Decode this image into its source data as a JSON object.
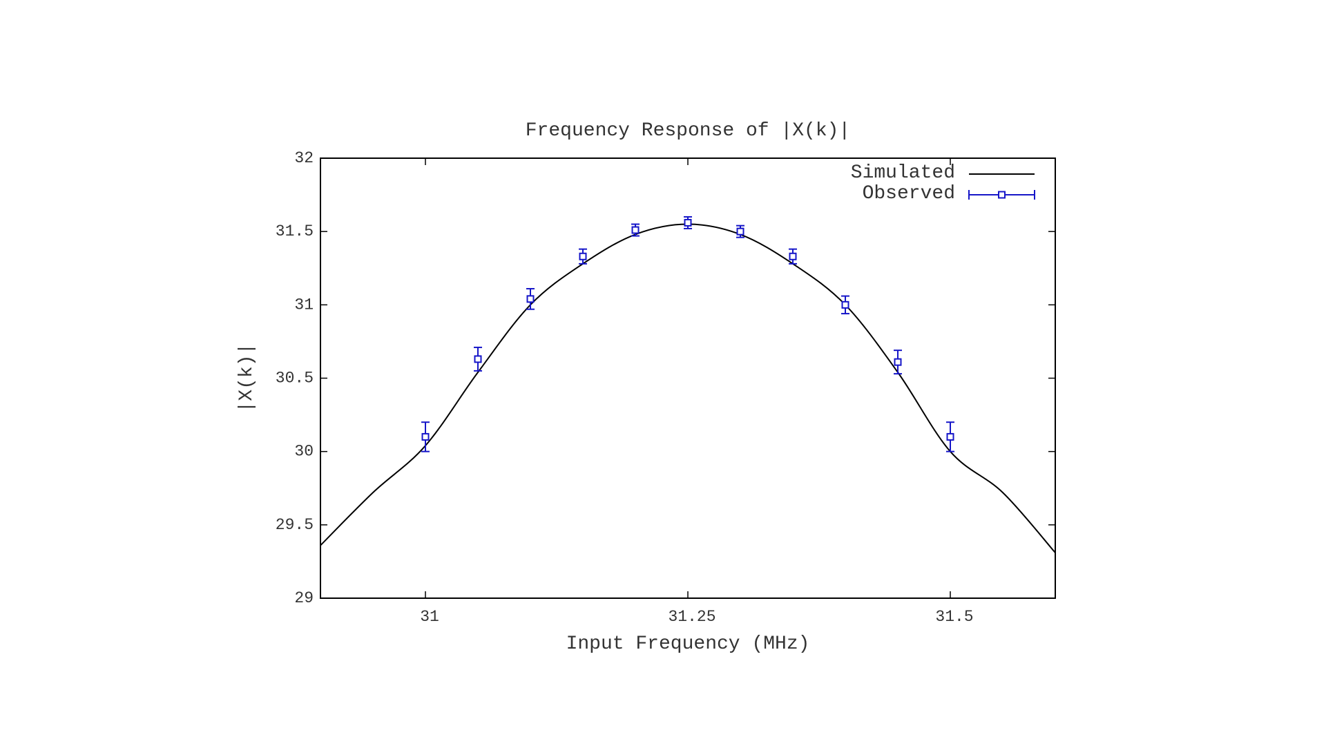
{
  "chart_data": {
    "type": "line",
    "title": "Frequency Response of |X(k)|",
    "xlabel": "Input Frequency (MHz)",
    "ylabel": "|X(k)|",
    "xlim": [
      30.9,
      31.6
    ],
    "ylim": [
      29,
      32
    ],
    "x_ticks": [
      31,
      31.25,
      31.5
    ],
    "x_tick_labels": [
      "31",
      "31.25",
      "31.5"
    ],
    "y_ticks": [
      29,
      29.5,
      30,
      30.5,
      31,
      31.5,
      32
    ],
    "y_tick_labels": [
      "29",
      "29.5",
      "30",
      "30.5",
      "31",
      "31.5",
      "32"
    ],
    "grid": false,
    "legend_position": "top-right",
    "series": [
      {
        "name": "Simulated",
        "style": "line",
        "color": "#000000",
        "x": [
          30.9,
          30.95,
          31.0,
          31.05,
          31.1,
          31.15,
          31.2,
          31.25,
          31.3,
          31.35,
          31.4,
          31.45,
          31.5,
          31.55,
          31.6
        ],
        "y": [
          29.36,
          29.72,
          30.04,
          30.54,
          31.0,
          31.28,
          31.48,
          31.55,
          31.48,
          31.28,
          31.0,
          30.54,
          30.0,
          29.72,
          29.31
        ]
      },
      {
        "name": "Observed",
        "style": "points_errorbars",
        "color": "#1515c8",
        "x": [
          31.0,
          31.05,
          31.1,
          31.15,
          31.2,
          31.25,
          31.3,
          31.35,
          31.4,
          31.45,
          31.5
        ],
        "y": [
          30.1,
          30.63,
          31.04,
          31.33,
          31.51,
          31.56,
          31.5,
          31.33,
          31.0,
          30.61,
          30.1
        ],
        "err": [
          0.1,
          0.08,
          0.07,
          0.05,
          0.04,
          0.04,
          0.04,
          0.05,
          0.06,
          0.08,
          0.1
        ]
      }
    ]
  }
}
